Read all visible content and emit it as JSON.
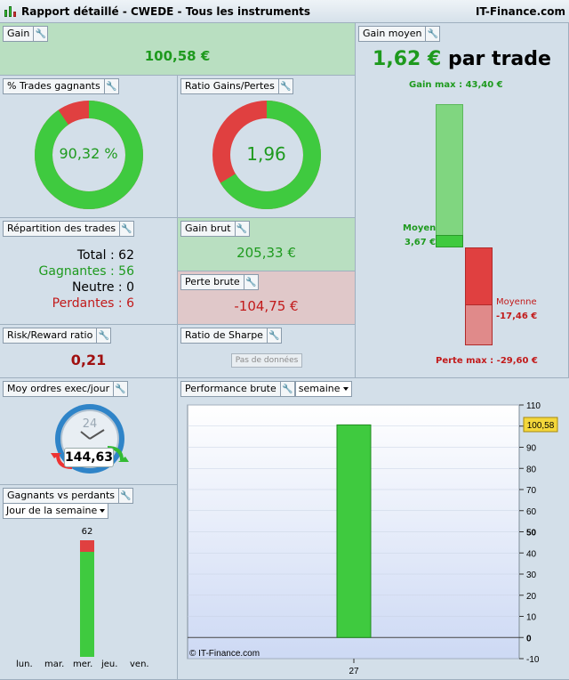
{
  "window": {
    "title": "Rapport détaillé - CWEDE - Tous les instruments",
    "brand": "IT-Finance.com"
  },
  "gain": {
    "label": "Gain",
    "value": "100,58 €"
  },
  "pct_trades": {
    "label": "% Trades gagnants",
    "value": "90,32 %",
    "fraction": 0.9032
  },
  "ratio_gp": {
    "label": "Ratio Gains/Pertes",
    "value": "1,96",
    "fraction": 0.662
  },
  "repartition": {
    "label": "Répartition des trades",
    "total": "Total : 62",
    "gagnantes": "Gagnantes : 56",
    "neutre": "Neutre : 0",
    "perdantes": "Perdantes : 6"
  },
  "gain_brut": {
    "label": "Gain brut",
    "value": "205,33 €"
  },
  "perte_brute": {
    "label": "Perte brute",
    "value": "-104,75 €"
  },
  "gain_moyen": {
    "label": "Gain moyen",
    "value": "1,62 €",
    "suffix": " par trade",
    "gain_max": "Gain max : 43,40 €",
    "moyen_label": "Moyen",
    "moyen_value": "3,67 €",
    "moyenne_label": "Moyenne",
    "moyenne_value": "-17,46 €",
    "perte_max": "Perte max : -29,60 €",
    "gain_max_value": 43.4,
    "gain_avg_value": 3.67,
    "loss_avg_value": -17.46,
    "loss_max_value": -29.6
  },
  "risk_reward": {
    "label": "Risk/Reward ratio",
    "value": "0,21"
  },
  "sharpe": {
    "label": "Ratio de Sharpe",
    "button": "Pas de données"
  },
  "ordres": {
    "label": "Moy ordres exec/jour",
    "value": "144,63",
    "clock": "24"
  },
  "perf": {
    "label": "Performance brute",
    "period": "semaine",
    "copyright": "© IT-Finance.com",
    "current_value": "100,58"
  },
  "gvp": {
    "label": "Gagnants vs perdants",
    "period": "Jour de la semaine",
    "days": [
      "lun.",
      "mar.",
      "mer.",
      "jeu.",
      "ven."
    ],
    "count_label": "62",
    "wins": 56,
    "losses": 6
  },
  "colors": {
    "green": "#3fca3f",
    "red": "#e04040",
    "light_green": "#80d680",
    "light_red": "#e08a8a"
  },
  "chart_data": {
    "type": "bar",
    "title": "Performance brute",
    "categories": [
      "27"
    ],
    "values": [
      100.58
    ],
    "ylim": [
      -10,
      110
    ],
    "yticks": [
      -10,
      0,
      10,
      20,
      30,
      40,
      50,
      60,
      70,
      80,
      90,
      100,
      110
    ],
    "xlabel": "",
    "ylabel": ""
  }
}
